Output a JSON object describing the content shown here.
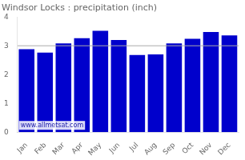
{
  "chart_data": {
    "type": "bar",
    "title": "Windsor Locks : precipitation (inch)",
    "categories": [
      "Jan",
      "Feb",
      "Mar",
      "Apr",
      "May",
      "Jun",
      "Jul",
      "Aug",
      "Sep",
      "Oct",
      "Nov",
      "Dec"
    ],
    "values": [
      2.88,
      2.76,
      3.08,
      3.26,
      3.52,
      3.2,
      2.68,
      2.7,
      3.08,
      3.24,
      3.48,
      3.36
    ],
    "color": "#0000CC",
    "ylim": [
      0,
      4
    ],
    "yticks": [
      0,
      1,
      2,
      3,
      4
    ],
    "hline": 3.0,
    "annotation": "www.allmetsat.com",
    "grid": false
  }
}
